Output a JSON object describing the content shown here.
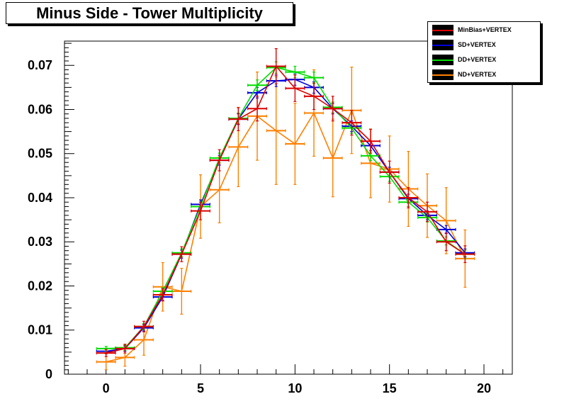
{
  "title": "Minus Side - Tower Multiplicity",
  "colors": {
    "background": "#ffffff",
    "frame": "#000000",
    "minbias": "#dd0000",
    "sd": "#0000dd",
    "dd": "#00dd00",
    "nd": "#ff8000"
  },
  "chart_data": {
    "type": "line",
    "title": "Minus Side - Tower Multiplicity",
    "xlabel": "",
    "ylabel": "",
    "xlim": [
      -2.2,
      21.5
    ],
    "ylim": [
      0,
      0.0755
    ],
    "x_ticks": [
      0,
      5,
      10,
      15,
      20
    ],
    "x_tick_labels": [
      "0",
      "5",
      "10",
      "15",
      "20"
    ],
    "y_ticks": [
      0,
      0.01,
      0.02,
      0.03,
      0.04,
      0.05,
      0.06,
      0.07
    ],
    "y_tick_labels": [
      "0",
      "0.01",
      "0.02",
      "0.03",
      "0.04",
      "0.05",
      "0.06",
      "0.07"
    ],
    "grid": false,
    "legend_position": "top-right",
    "x": [
      0,
      1,
      2,
      3,
      4,
      5,
      6,
      7,
      8,
      9,
      10,
      11,
      12,
      13,
      14,
      15,
      16,
      17,
      18,
      19
    ],
    "series": [
      {
        "name": "MinBias+VERTEX",
        "color": "#dd0000",
        "values": [
          0.0048,
          0.0058,
          0.0108,
          0.018,
          0.0272,
          0.037,
          0.0485,
          0.0578,
          0.0602,
          0.0698,
          0.0648,
          0.063,
          0.0602,
          0.057,
          0.0528,
          0.0458,
          0.04,
          0.0368,
          0.03,
          0.0272
        ],
        "errors": [
          0.0008,
          0.001,
          0.0012,
          0.0014,
          0.0017,
          0.002,
          0.0024,
          0.0026,
          0.0028,
          0.004,
          0.003,
          0.003,
          0.0028,
          0.0028,
          0.0027,
          0.0025,
          0.0023,
          0.0022,
          0.002,
          0.0019
        ]
      },
      {
        "name": "SD+VERTEX",
        "color": "#0000dd",
        "values": [
          0.0052,
          0.0058,
          0.0105,
          0.0175,
          0.0272,
          0.0385,
          0.0485,
          0.0578,
          0.0638,
          0.0665,
          0.0668,
          0.065,
          0.0602,
          0.0562,
          0.0518,
          0.0458,
          0.0398,
          0.036,
          0.0328,
          0.0275
        ],
        "errors": [
          0.0005,
          0.0006,
          0.0007,
          0.0008,
          0.0009,
          0.001,
          0.0011,
          0.0012,
          0.0012,
          0.0013,
          0.0013,
          0.0013,
          0.0012,
          0.0012,
          0.0011,
          0.0011,
          0.001,
          0.001,
          0.0009,
          0.0009
        ]
      },
      {
        "name": "DD+VERTEX",
        "color": "#00dd00",
        "values": [
          0.0058,
          0.006,
          0.0108,
          0.0188,
          0.0275,
          0.038,
          0.049,
          0.058,
          0.0655,
          0.0695,
          0.0685,
          0.0672,
          0.0605,
          0.0558,
          0.0495,
          0.0448,
          0.039,
          0.0355,
          0.0302,
          0.0272
        ],
        "errors": [
          0.0005,
          0.0006,
          0.0007,
          0.0008,
          0.0009,
          0.001,
          0.0011,
          0.0012,
          0.0012,
          0.0013,
          0.0013,
          0.0013,
          0.0012,
          0.0012,
          0.0011,
          0.0011,
          0.001,
          0.001,
          0.0009,
          0.0009
        ]
      },
      {
        "name": "ND+VERTEX",
        "color": "#ff8000",
        "values": [
          0.0028,
          0.0038,
          0.0078,
          0.0198,
          0.0188,
          0.038,
          0.0418,
          0.0515,
          0.0585,
          0.0552,
          0.0522,
          0.0592,
          0.049,
          0.0598,
          0.0478,
          0.0465,
          0.042,
          0.0382,
          0.0348,
          0.0262
        ],
        "errors": [
          0.0018,
          0.002,
          0.0035,
          0.0055,
          0.0052,
          0.0072,
          0.0075,
          0.009,
          0.01,
          0.0122,
          0.0092,
          0.0098,
          0.0088,
          0.0098,
          0.0078,
          0.0075,
          0.0085,
          0.0072,
          0.0075,
          0.0065
        ]
      }
    ]
  }
}
